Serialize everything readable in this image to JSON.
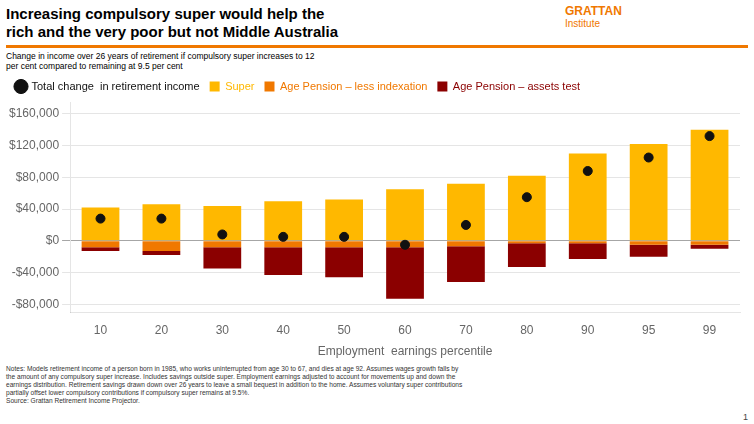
{
  "chart_data": {
    "type": "bar",
    "stacked": true,
    "title": [
      "Increasing compulsory super would help the",
      "rich and the very poor but not Middle Australia"
    ],
    "subtitle": "Change in income over 26 years of retirement if compulsory super increases to 12\nper cent compared to remaining at 9.5 per cent",
    "x_label": "Employment  earnings percentile",
    "categories": [
      "10",
      "20",
      "30",
      "40",
      "50",
      "60",
      "70",
      "80",
      "90",
      "95",
      "99"
    ],
    "series": [
      {
        "name": "Super",
        "type": "bar",
        "color": "#FFB800",
        "values": [
          42000,
          46000,
          44000,
          50000,
          52000,
          65000,
          72000,
          82000,
          110000,
          122000,
          140000
        ]
      },
      {
        "name": "Age Pension – less indexation",
        "type": "bar",
        "color": "#F07800",
        "values": [
          -8000,
          -13000,
          -8000,
          -8000,
          -8000,
          -8000,
          -7000,
          -3000,
          -3000,
          -5000,
          -5000
        ]
      },
      {
        "name": "Age Pension – assets test",
        "type": "bar",
        "color": "#8B0000",
        "values": [
          -5000,
          -5000,
          -27000,
          -35000,
          -38000,
          -65000,
          -45000,
          -30000,
          -20000,
          -15000,
          -5000
        ]
      },
      {
        "name": "Total change  in retirement income",
        "type": "scatter",
        "marker": "circle",
        "color": "#111111",
        "values": [
          28000,
          28000,
          8000,
          5000,
          5000,
          -5000,
          20000,
          55000,
          88000,
          105000,
          132000
        ]
      }
    ],
    "ylim": [
      -90000,
      175000
    ],
    "yticks": [
      {
        "value": -80000,
        "label": "-$80,000"
      },
      {
        "value": -40000,
        "label": "-$40,000"
      },
      {
        "value": 0,
        "label": "$0"
      },
      {
        "value": 40000,
        "label": "$40,000"
      },
      {
        "value": 80000,
        "label": "$80,000"
      },
      {
        "value": 120000,
        "label": "$120,000"
      },
      {
        "value": 160000,
        "label": "$160,000"
      }
    ],
    "grid": true,
    "legend": "upper left",
    "annotations": {
      "brand": [
        "GRATTAN",
        "Institute"
      ],
      "brand_color": "#F07800",
      "separator_color": "#F07800",
      "notes": "Notes: Models retirement income of a person born in 1985, who works uninterrupted from age 30 to 67, and dies at age 92. Assumes wages growth falls by\nthe amount of any compulsory super increase. Includes savings outside super. Employment earnings adjusted to account for movements up and down the\nearnings distribution. Retirement savings drawn down over 26 years to leave a small bequest in addition to the home. Assumes voluntary super contributions\npartially offset lower compulsory contributions if compulsory super remains at 9.5%.\nSource: Grattan Retirement Income Projector.",
      "page_number": "1"
    }
  }
}
